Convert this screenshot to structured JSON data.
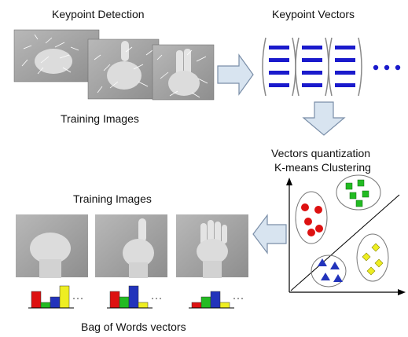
{
  "labels": {
    "keypoint_detection": "Keypoint Detection",
    "keypoint_vectors": "Keypoint Vectors",
    "training_images_top": "Training Images",
    "vq_line1": "Vectors quantization",
    "vq_line2": "K-means Clustering",
    "training_images_bottom": "Training Images",
    "bow_vectors": "Bag of  Words  vectors"
  },
  "colors": {
    "vector_bar": "#1a1acc",
    "cluster_red": "#dd1111",
    "cluster_green": "#22bb22",
    "cluster_blue": "#2233bb",
    "cluster_yellow": "#eeee22",
    "arrow_fill": "#d8e4f0",
    "arrow_stroke": "#7a8ea8",
    "photo_gray": "#a8a8a8"
  },
  "histograms": [
    {
      "name": "fist",
      "values": [
        3,
        1,
        2,
        4
      ]
    },
    {
      "name": "one-finger",
      "values": [
        3,
        2,
        4,
        1
      ]
    },
    {
      "name": "open-hand",
      "values": [
        1,
        2,
        3,
        1
      ]
    }
  ],
  "histogram_colors": [
    "#dd1111",
    "#22bb22",
    "#2233bb",
    "#eeee22"
  ],
  "icons": [
    "right-arrow-icon",
    "down-arrow-icon",
    "left-arrow-icon",
    "ellipsis-icon"
  ]
}
